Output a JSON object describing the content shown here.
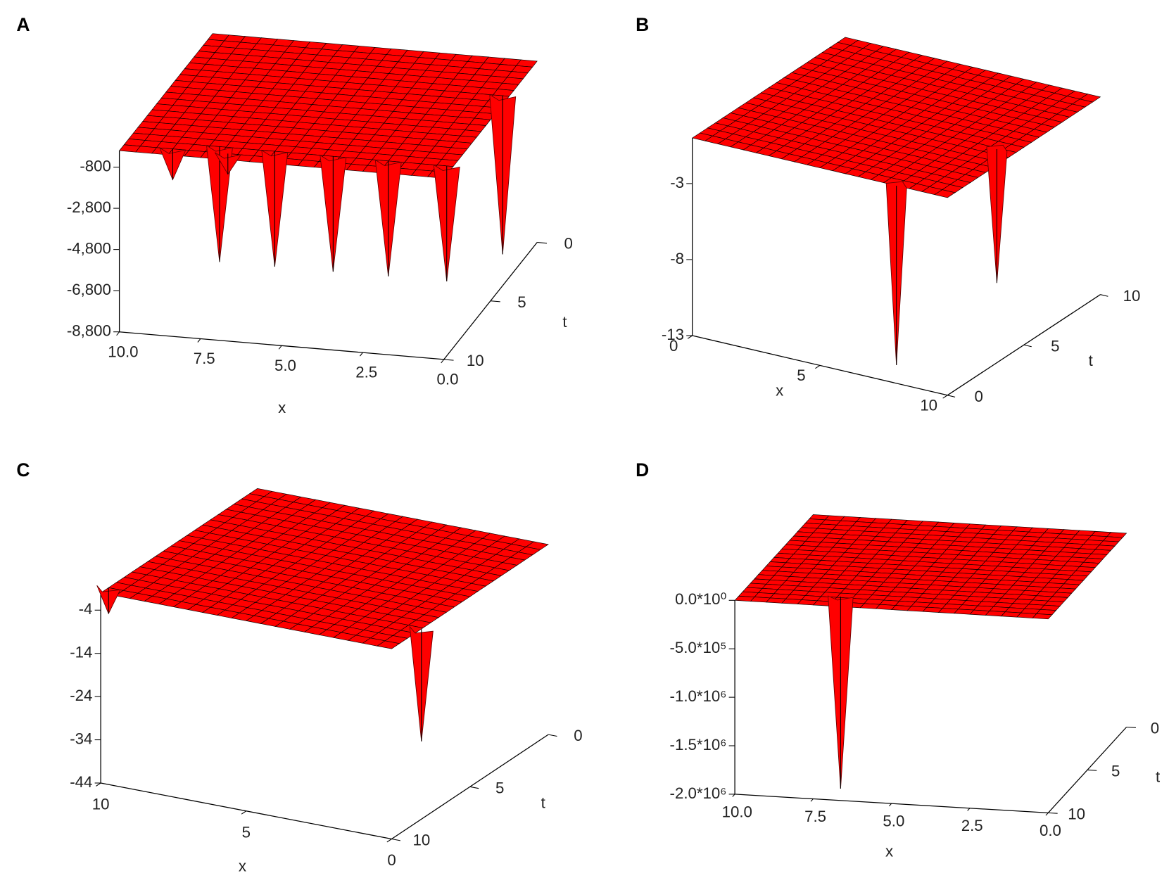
{
  "chart_data": [
    {
      "type": "surface",
      "label": "A",
      "x_label": "x",
      "t_label": "t",
      "color": "#ff0000",
      "xlim": [
        0,
        10
      ],
      "tlim": [
        0,
        10
      ],
      "zlim": [
        -8800,
        0
      ],
      "xticks": [
        {
          "value": 10,
          "label": "10.0"
        },
        7.5,
        {
          "value": 5,
          "label": "5.0"
        },
        2.5,
        {
          "value": 0,
          "label": "0.0"
        }
      ],
      "tticks": [
        0,
        5,
        10
      ],
      "zticks": [
        -800,
        {
          "value": -2800,
          "label": "-2,800"
        },
        {
          "value": -4800,
          "label": "-4,800"
        },
        {
          "value": -6800,
          "label": "-6,800"
        },
        {
          "value": -8800,
          "label": "-8,800"
        }
      ],
      "plateau": 0,
      "spikes": [
        {
          "x": 7.2,
          "t": 9,
          "z": -5600
        },
        {
          "x": 5.5,
          "t": 9,
          "z": -5600
        },
        {
          "x": 3.7,
          "t": 9,
          "z": -5600
        },
        {
          "x": 2.0,
          "t": 9,
          "z": -5600
        },
        {
          "x": 0.2,
          "t": 9,
          "z": -5600
        },
        {
          "x": 0.2,
          "t": 3,
          "z": -7700
        },
        {
          "x": 8.5,
          "t": 9.5,
          "z": -1500
        },
        {
          "x": 6.8,
          "t": 9.5,
          "z": -1000
        }
      ]
    },
    {
      "type": "surface",
      "label": "B",
      "x_label": "x",
      "t_label": "t",
      "color": "#ff0000",
      "xlim": [
        0,
        10
      ],
      "tlim": [
        0,
        10
      ],
      "zlim": [
        -13,
        0
      ],
      "xticks": [
        0,
        5,
        10
      ],
      "tticks": [
        0,
        5,
        10
      ],
      "zticks": [
        -3,
        -8,
        -13
      ],
      "plateau": 0,
      "spikes": [
        {
          "x": 8,
          "t": 0,
          "z": -11.8
        },
        {
          "x": 9.3,
          "t": 4.4,
          "z": -8.8
        }
      ]
    },
    {
      "type": "surface",
      "label": "C",
      "x_label": "x",
      "t_label": "t",
      "color": "#ff0000",
      "xlim": [
        0,
        10
      ],
      "tlim": [
        0,
        10
      ],
      "zlim": [
        -44,
        0
      ],
      "xticks": [
        10,
        5,
        0
      ],
      "tticks": [
        0,
        5,
        10
      ],
      "zticks": [
        -4,
        -14,
        -24,
        -34,
        -44
      ],
      "plateau": 0,
      "spikes": [
        {
          "x": 0,
          "t": 8.1,
          "z": -26
        },
        {
          "x": 10,
          "t": 9.5,
          "z": -6
        }
      ]
    },
    {
      "type": "surface",
      "label": "D",
      "x_label": "x",
      "t_label": "t",
      "color": "#ff0000",
      "xlim": [
        0,
        10
      ],
      "tlim": [
        0,
        10
      ],
      "zlim": [
        -2000000,
        0
      ],
      "xticks": [
        {
          "value": 10,
          "label": "10.0"
        },
        7.5,
        {
          "value": 5,
          "label": "5.0"
        },
        2.5,
        {
          "value": 0,
          "label": "0.0"
        }
      ],
      "tticks": [
        0,
        5,
        10
      ],
      "zticks": [
        {
          "value": 0,
          "label": "0.0*10⁰"
        },
        {
          "value": -500000,
          "label": "-5.0*10⁵"
        },
        {
          "value": -1000000,
          "label": "-1.0*10⁶"
        },
        {
          "value": -1500000,
          "label": "-1.5*10⁶"
        },
        {
          "value": -2000000,
          "label": "-2.0*10⁶"
        }
      ],
      "plateau": 0,
      "spikes": [
        {
          "x": 6.9,
          "t": 8.9,
          "z": -1980000
        }
      ]
    }
  ]
}
